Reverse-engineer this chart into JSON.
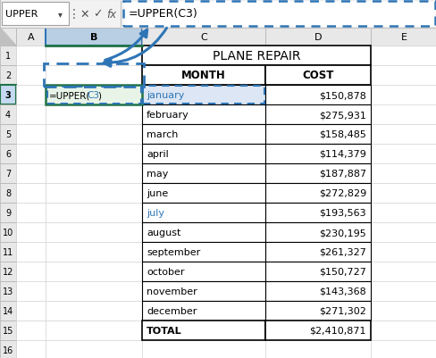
{
  "title": "PLANE REPAIR",
  "header_month": "MONTH",
  "header_cost": "COST",
  "months": [
    "january",
    "february",
    "march",
    "april",
    "may",
    "june",
    "july",
    "august",
    "september",
    "october",
    "november",
    "december"
  ],
  "costs": [
    "$150,878",
    "$275,931",
    "$158,485",
    "$114,379",
    "$187,887",
    "$272,829",
    "$193,563",
    "$230,195",
    "$261,327",
    "$150,727",
    "$143,368",
    "$271,302"
  ],
  "total_label": "TOTAL",
  "total_value": "$2,410,871",
  "formula_bar_text": "=UPPER(C3)",
  "name_box": "UPPER",
  "bg_color": "#ffffff",
  "grid_color": "#d0d0d0",
  "col_header_bg": "#e8e8e8",
  "col_b_selected_bg": "#c5d9f1",
  "row3_bg": "#e8f0e0",
  "selected_row_bg": "#dce6f0",
  "formula_bar_dash_color": "#2e75b6",
  "table_border_color": "#000000",
  "blue_text_color": "#2e75b6",
  "green_border_color": "#217346",
  "formula_bar_bg": "#f2f2f2"
}
